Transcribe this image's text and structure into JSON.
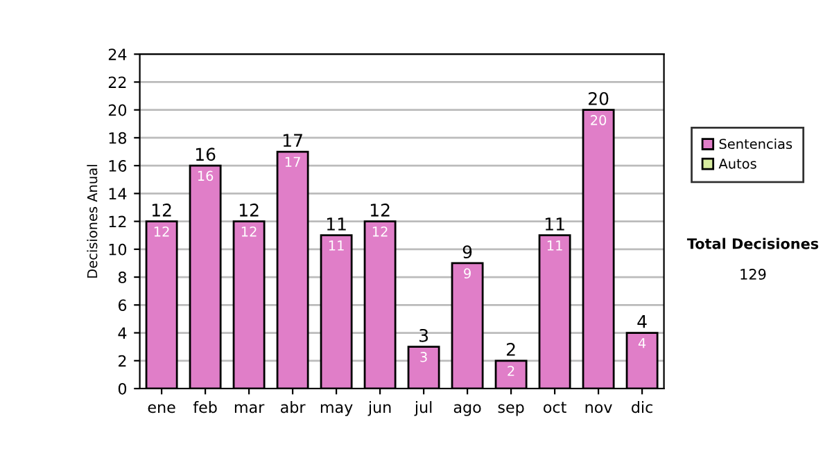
{
  "chart_data": {
    "type": "bar",
    "stacked": true,
    "ylabel": "Decisiones Anual",
    "categories": [
      "ene",
      "feb",
      "mar",
      "abr",
      "may",
      "jun",
      "jul",
      "ago",
      "sep",
      "oct",
      "nov",
      "dic"
    ],
    "series": [
      {
        "name": "Sentencias",
        "color": "#e07ec8",
        "values": [
          12,
          16,
          12,
          17,
          11,
          12,
          3,
          9,
          2,
          11,
          20,
          4
        ],
        "value_labels": [
          "12",
          "16",
          "12",
          "17",
          "11",
          "12",
          "3",
          "9",
          "2",
          "11",
          "20",
          "4"
        ]
      },
      {
        "name": "Autos",
        "color": "#d8eca0",
        "values": [
          null,
          null,
          null,
          null,
          null,
          null,
          null,
          null,
          null,
          null,
          null,
          null
        ]
      }
    ],
    "totals": [
      "12",
      "16",
      "12",
      "17",
      "11",
      "12",
      "3",
      "9",
      "2",
      "11",
      "20",
      "4"
    ],
    "ylim": [
      0,
      24
    ],
    "yticks": [
      0,
      2,
      4,
      6,
      8,
      10,
      12,
      14,
      16,
      18,
      20,
      22,
      24
    ],
    "grid": "y",
    "legend": "right",
    "annotations": [
      "Total Decisiones",
      "129"
    ]
  }
}
